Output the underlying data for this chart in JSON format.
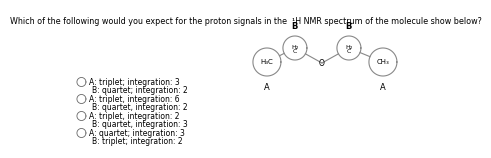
{
  "title": "Which of the following would you expect for the proton signals in the  ¹H NMR spectrum of the molecule show below?",
  "options": [
    [
      "A: triplet; integration: 3",
      "B: quartet; integration: 2"
    ],
    [
      "A: triplet, integration: 6",
      "B: quartet, integration: 2"
    ],
    [
      "A: triplet, integration: 2",
      "B: quartet, integration: 3"
    ],
    [
      "A: quartet; integration: 3",
      "B: triplet; integration: 2"
    ]
  ],
  "selected_option": -1,
  "bg_color": "#ffffff",
  "text_color": "#000000",
  "title_fontsize": 5.8,
  "option_fontsize": 5.5,
  "mol": {
    "H3C_label": "H₃C",
    "CH3_label": "CH₃",
    "H2_label": "H₂",
    "C_label": "C",
    "O_label": "O",
    "A_label": "A",
    "B_label": "B"
  }
}
